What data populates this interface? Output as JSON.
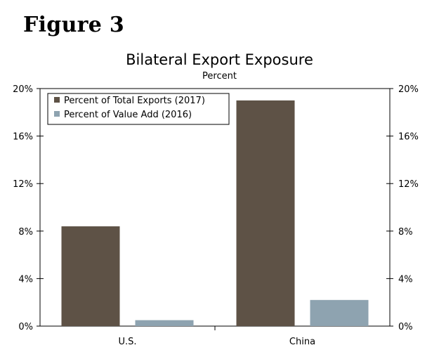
{
  "figure": {
    "label": "Figure 3"
  },
  "chart_data": {
    "type": "bar",
    "title": "Bilateral Export Exposure",
    "subtitle": "Percent",
    "categories": [
      "U.S.",
      "China"
    ],
    "series": [
      {
        "name": "Percent of Total Exports (2017)",
        "values": [
          8.4,
          19.0
        ],
        "color": "#5e5246"
      },
      {
        "name": "Percent of Value Add (2016)",
        "values": [
          0.5,
          2.2
        ],
        "color": "#8ea3b0"
      }
    ],
    "ylim": [
      0,
      20
    ],
    "yticks": [
      0,
      4,
      8,
      12,
      16,
      20
    ],
    "ytick_labels": [
      "0%",
      "4%",
      "8%",
      "12%",
      "16%",
      "20%"
    ],
    "right_axis_ticks": [
      "0%",
      "4%",
      "8%",
      "12%",
      "16%",
      "20%"
    ],
    "legend_position": "top-left",
    "grid": false
  }
}
